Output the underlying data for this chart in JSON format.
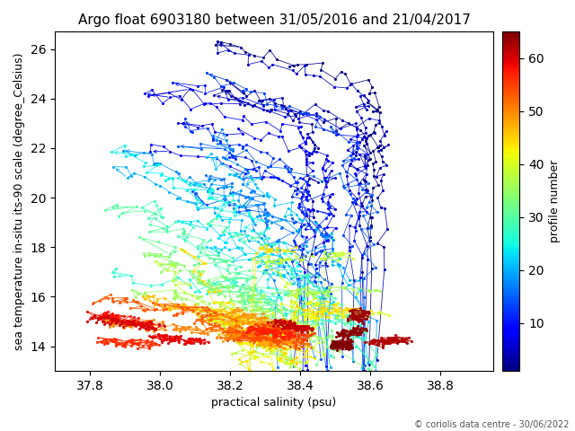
{
  "title": "Argo float 6903180 between 31/05/2016 and 21/04/2017",
  "xlabel": "practical salinity (psu)",
  "ylabel": "sea temperature in-situ its-90 scale (degree_Celsius)",
  "cbar_label": "profile number",
  "copyright": "© coriolis data centre - 30/06/2022",
  "xlim": [
    37.7,
    38.95
  ],
  "ylim": [
    13.0,
    26.7
  ],
  "n_profiles": 65,
  "colormap": "jet",
  "cbar_ticks": [
    10,
    20,
    30,
    40,
    50,
    60
  ],
  "cbar_vmin": 1,
  "cbar_vmax": 65,
  "figsize": [
    6.4,
    4.8
  ],
  "dpi": 100,
  "title_fontsize": 11,
  "label_fontsize": 9,
  "marker_size": 2.5,
  "line_width": 0.6
}
